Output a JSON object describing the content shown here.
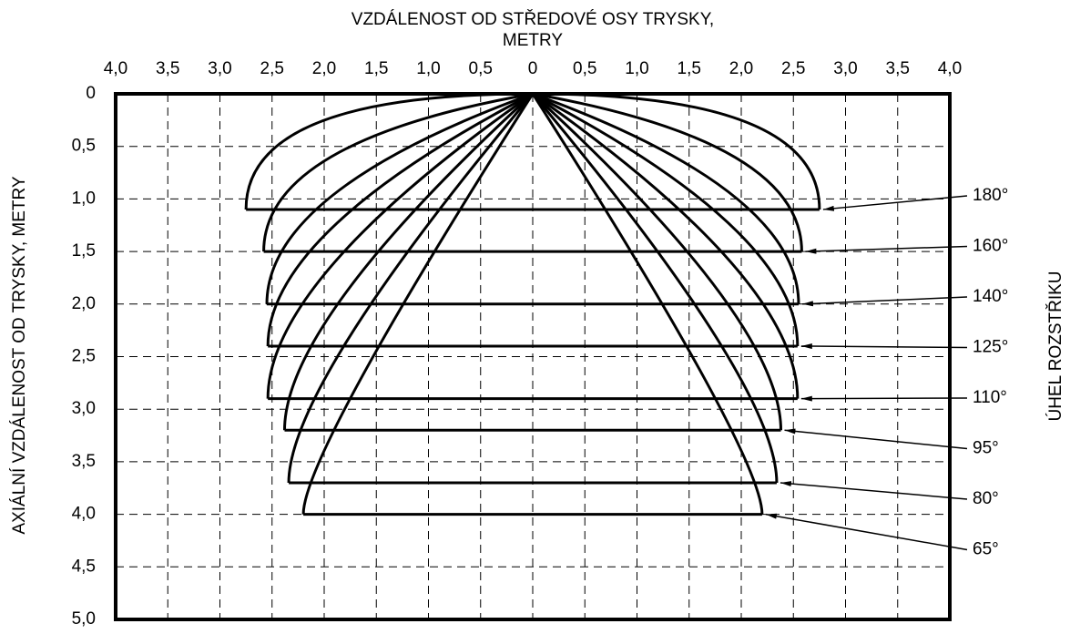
{
  "chart_data": {
    "type": "spray",
    "xlabel": [
      "VZDÁLENOST OD STŘEDOVÉ OSY TRYSKY,",
      "METRY"
    ],
    "ylabel": "AXIÁLNÍ VZDÁLENOST OD TRYSKY, METRY",
    "y2label": "ÚHEL ROZSTŘIKU",
    "values": [
      180,
      160,
      140,
      125,
      110,
      95,
      80,
      65
    ],
    "value_labels": [
      "180°",
      "160°",
      "140°",
      "125°",
      "110°",
      "95°",
      "80°",
      "65°"
    ],
    "depths": [
      1.1,
      1.5,
      2.0,
      2.4,
      2.9,
      3.2,
      3.7,
      4.0
    ],
    "half_widths": [
      2.75,
      2.58,
      2.55,
      2.54,
      2.54,
      2.38,
      2.34,
      2.2
    ],
    "color": "#000000",
    "xlim": [
      -4,
      4
    ],
    "xticks": [
      {
        "value": -4,
        "label": "4,0"
      },
      {
        "value": -3.5,
        "label": "3,5"
      },
      {
        "value": -3,
        "label": "3,0"
      },
      {
        "value": -2.5,
        "label": "2,5"
      },
      {
        "value": -2,
        "label": "2,0"
      },
      {
        "value": -1.5,
        "label": "1,5"
      },
      {
        "value": -1,
        "label": "1,0"
      },
      {
        "value": -0.5,
        "label": "0,5"
      },
      0,
      {
        "value": 0.5,
        "label": "0,5"
      },
      {
        "value": 1,
        "label": "1,0"
      },
      {
        "value": 1.5,
        "label": "1,5"
      },
      {
        "value": 2,
        "label": "2,0"
      },
      {
        "value": 2.5,
        "label": "2,5"
      },
      {
        "value": 3,
        "label": "3,0"
      },
      {
        "value": 3.5,
        "label": "3,5"
      },
      {
        "value": 4,
        "label": "4,0"
      }
    ],
    "ylim": [
      0,
      5
    ],
    "yticks": [
      0,
      {
        "value": 0.5,
        "label": "0,5"
      },
      {
        "value": 1,
        "label": "1,0"
      },
      {
        "value": 1.5,
        "label": "1,5"
      },
      {
        "value": 2,
        "label": "2,0"
      },
      {
        "value": 2.5,
        "label": "2,5"
      },
      {
        "value": 3,
        "label": "3,0"
      },
      {
        "value": 3.5,
        "label": "3,5"
      },
      {
        "value": 4,
        "label": "4,0"
      },
      {
        "value": 4.5,
        "label": "4,5"
      },
      {
        "value": 5,
        "label": "5,0"
      }
    ],
    "grid": true
  }
}
